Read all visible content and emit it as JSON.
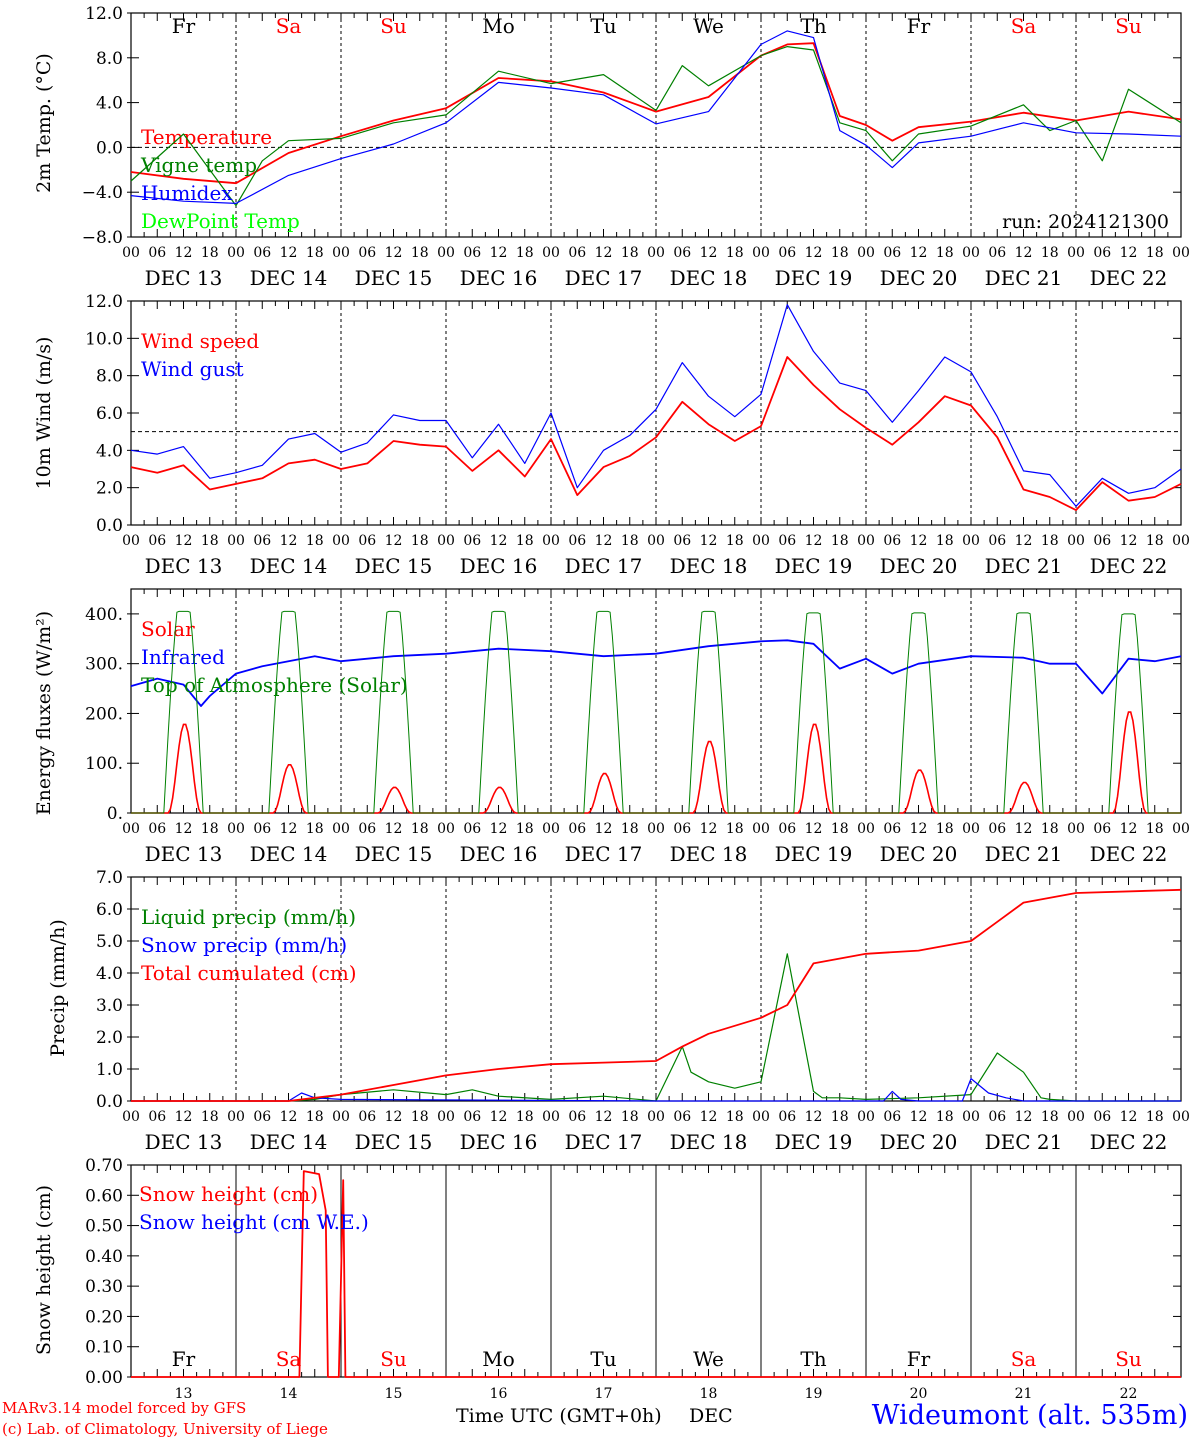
{
  "page": {
    "footer_model": "MARv3.14 model forced by GFS",
    "footer_lab": "(c) Lab. of Climatology, University of Liege",
    "footer_xlabel": "Time UTC (GMT+0h)",
    "footer_month": "DEC",
    "station": "Wideumont (alt. 535m)",
    "run": "run: 2024121300"
  },
  "colors": {
    "red": "#ff0000",
    "green": "#008000",
    "blue": "#0000ff",
    "lime": "#00ff00"
  },
  "days": {
    "weekdays": [
      "Fr",
      "Sa",
      "Su",
      "Mo",
      "Tu",
      "We",
      "Th",
      "Fr",
      "Sa",
      "Su"
    ],
    "weekend": [
      false,
      true,
      true,
      false,
      false,
      false,
      false,
      false,
      true,
      true
    ],
    "date_labels": [
      "DEC 13",
      "DEC 14",
      "DEC 15",
      "DEC 16",
      "DEC 17",
      "DEC 18",
      "DEC 19",
      "DEC 20",
      "DEC 21",
      "DEC 22"
    ],
    "day_numbers": [
      "13",
      "14",
      "15",
      "16",
      "17",
      "18",
      "19",
      "20",
      "21",
      "22"
    ],
    "hour_labels": [
      "00",
      "06",
      "12",
      "18"
    ],
    "final_hour": "00"
  },
  "chart_data": [
    {
      "type": "line",
      "ylabel": "2m Temp. (°C)",
      "ylim": [
        -8,
        12
      ],
      "yticks": [
        "12.0",
        "8.0",
        "4.0",
        "0.0",
        "−4.0",
        "−8.0"
      ],
      "ytick_values": [
        12,
        8,
        4,
        0,
        -4,
        -8
      ],
      "reference_line": 0,
      "x_unit": "hours since DEC 13 00 UTC",
      "series": [
        {
          "name": "Temperature",
          "color": "#ff0000",
          "x": [
            0,
            12,
            24,
            36,
            48,
            60,
            72,
            84,
            96,
            108,
            120,
            132,
            144,
            150,
            156,
            162,
            168,
            174,
            180,
            192,
            204,
            216,
            228,
            240
          ],
          "y": [
            -2.2,
            -2.8,
            -3.2,
            -0.5,
            1.0,
            2.4,
            3.5,
            6.2,
            5.9,
            4.9,
            3.2,
            4.5,
            8.2,
            9.2,
            9.3,
            2.8,
            2.0,
            0.6,
            1.8,
            2.3,
            3.1,
            2.4,
            3.2,
            2.5
          ]
        },
        {
          "name": "Vigne temp",
          "color": "#008000",
          "x": [
            0,
            12,
            24,
            30,
            36,
            48,
            60,
            72,
            84,
            96,
            108,
            120,
            126,
            132,
            144,
            150,
            156,
            162,
            168,
            174,
            180,
            192,
            204,
            210,
            216,
            222,
            228,
            240
          ],
          "y": [
            -3.0,
            1.2,
            -5.2,
            -1.2,
            0.6,
            0.8,
            2.2,
            2.9,
            6.8,
            5.7,
            6.5,
            3.3,
            7.3,
            5.5,
            8.2,
            9.0,
            8.7,
            2.2,
            1.5,
            -1.2,
            1.2,
            1.9,
            3.8,
            1.5,
            2.4,
            -1.2,
            5.2,
            2.2
          ]
        },
        {
          "name": "Humidex",
          "color": "#0000ff",
          "x": [
            0,
            12,
            24,
            36,
            48,
            60,
            72,
            84,
            96,
            108,
            120,
            132,
            144,
            150,
            156,
            162,
            168,
            174,
            180,
            192,
            204,
            216,
            228,
            240
          ],
          "y": [
            -4.3,
            -4.8,
            -5.0,
            -2.5,
            -1.0,
            0.3,
            2.2,
            5.8,
            5.3,
            4.7,
            2.1,
            3.2,
            9.2,
            10.4,
            9.8,
            1.5,
            0.2,
            -1.8,
            0.4,
            1.0,
            2.2,
            1.3,
            1.2,
            1.0
          ]
        },
        {
          "name": "DewPoint Temp",
          "color": "#00ff00",
          "x": [],
          "y": []
        }
      ]
    },
    {
      "type": "line",
      "ylabel": "10m Wind (m/s)",
      "ylim": [
        0,
        12
      ],
      "yticks": [
        "12.0",
        "10.0",
        "8.0",
        "6.0",
        "4.0",
        "2.0",
        "0.0"
      ],
      "ytick_values": [
        12,
        10,
        8,
        6,
        4,
        2,
        0
      ],
      "reference_line": 5,
      "x_unit": "hours since DEC 13 00 UTC",
      "series": [
        {
          "name": "Wind speed",
          "color": "#ff0000",
          "x": [
            0,
            6,
            12,
            18,
            24,
            30,
            36,
            42,
            48,
            54,
            60,
            66,
            72,
            78,
            84,
            90,
            96,
            102,
            108,
            114,
            120,
            126,
            132,
            138,
            144,
            150,
            156,
            162,
            168,
            174,
            180,
            186,
            192,
            198,
            204,
            210,
            216,
            222,
            228,
            234,
            240
          ],
          "y": [
            3.1,
            2.8,
            3.2,
            1.9,
            2.2,
            2.5,
            3.3,
            3.5,
            3.0,
            3.3,
            4.5,
            4.3,
            4.2,
            2.9,
            4.0,
            2.6,
            4.6,
            1.6,
            3.1,
            3.7,
            4.7,
            6.6,
            5.4,
            4.5,
            5.3,
            9.0,
            7.5,
            6.2,
            5.2,
            4.3,
            5.5,
            6.9,
            6.4,
            4.7,
            1.9,
            1.5,
            0.8,
            2.3,
            1.3,
            1.5,
            2.2
          ]
        },
        {
          "name": "Wind gust",
          "color": "#0000ff",
          "x": [
            0,
            6,
            12,
            18,
            24,
            30,
            36,
            42,
            48,
            54,
            60,
            66,
            72,
            78,
            84,
            90,
            96,
            102,
            108,
            114,
            120,
            126,
            132,
            138,
            144,
            150,
            156,
            162,
            168,
            174,
            180,
            186,
            192,
            198,
            204,
            210,
            216,
            222,
            228,
            234,
            240
          ],
          "y": [
            4.0,
            3.8,
            4.2,
            2.5,
            2.8,
            3.2,
            4.6,
            4.9,
            3.9,
            4.4,
            5.9,
            5.6,
            5.6,
            3.6,
            5.4,
            3.3,
            6.0,
            2.0,
            4.0,
            4.8,
            6.2,
            8.7,
            6.9,
            5.8,
            7.0,
            11.8,
            9.3,
            7.6,
            7.2,
            5.5,
            7.2,
            9.0,
            8.2,
            5.8,
            2.9,
            2.7,
            1.0,
            2.5,
            1.7,
            2.0,
            3.0
          ]
        }
      ]
    },
    {
      "type": "line",
      "ylabel": "Energy fluxes (W/m²)",
      "ylim": [
        0,
        450
      ],
      "yticks": [
        "400.",
        "300.",
        "200.",
        "100.",
        "0."
      ],
      "ytick_values": [
        400,
        300,
        200,
        100,
        0
      ],
      "x_unit": "hours since DEC 13 00 UTC",
      "series": [
        {
          "name": "Solar",
          "color": "#ff0000",
          "daily_peak": [
            180,
            98,
            52,
            52,
            80,
            145,
            180,
            87,
            62,
            205
          ]
        },
        {
          "name": "Infrared",
          "color": "#0000ff",
          "x": [
            0,
            6,
            12,
            16,
            18,
            24,
            30,
            36,
            42,
            48,
            60,
            72,
            84,
            96,
            108,
            120,
            132,
            144,
            150,
            156,
            162,
            168,
            174,
            180,
            192,
            204,
            210,
            216,
            222,
            228,
            234,
            240
          ],
          "y": [
            255,
            270,
            258,
            215,
            235,
            280,
            295,
            305,
            315,
            305,
            315,
            320,
            330,
            325,
            315,
            320,
            335,
            345,
            347,
            340,
            290,
            310,
            280,
            300,
            315,
            312,
            300,
            300,
            240,
            310,
            305,
            315
          ]
        },
        {
          "name": "Top of Atmosphere (Solar)",
          "color": "#008000",
          "daily_peak": [
            405,
            405,
            405,
            405,
            405,
            405,
            402,
            402,
            402,
            400
          ]
        }
      ]
    },
    {
      "type": "line",
      "ylabel": "Precip (mm/h)",
      "ylim": [
        0,
        7
      ],
      "yticks": [
        "7.0",
        "6.0",
        "5.0",
        "4.0",
        "3.0",
        "2.0",
        "1.0",
        "0.0"
      ],
      "ytick_values": [
        7,
        6,
        5,
        4,
        3,
        2,
        1,
        0
      ],
      "x_unit": "hours since DEC 13 00 UTC",
      "series": [
        {
          "name": "Liquid precip (mm/h)",
          "color": "#008000",
          "x": [
            0,
            36,
            42,
            48,
            60,
            72,
            78,
            84,
            96,
            108,
            120,
            126,
            128,
            132,
            138,
            144,
            150,
            156,
            158,
            162,
            168,
            180,
            192,
            198,
            204,
            208,
            210,
            216,
            240
          ],
          "y": [
            0,
            0,
            0.05,
            0.2,
            0.35,
            0.2,
            0.35,
            0.15,
            0.05,
            0.15,
            0,
            1.7,
            0.9,
            0.6,
            0.4,
            0.6,
            4.6,
            0.3,
            0.1,
            0.1,
            0.05,
            0.1,
            0.2,
            1.5,
            0.9,
            0.1,
            0.05,
            0,
            0
          ]
        },
        {
          "name": "Snow precip (mm/h)",
          "color": "#0000ff",
          "x": [
            0,
            36,
            39,
            42,
            48,
            120,
            172,
            174,
            176,
            180,
            190,
            192,
            196,
            200,
            204,
            240
          ],
          "y": [
            0,
            0,
            0.25,
            0.1,
            0.05,
            0,
            0,
            0.3,
            0.05,
            0,
            0,
            0.7,
            0.25,
            0.1,
            0,
            0
          ]
        },
        {
          "name": "Total cumulated (cm)",
          "color": "#ff0000",
          "x": [
            0,
            36,
            48,
            60,
            72,
            84,
            96,
            108,
            120,
            126,
            132,
            144,
            150,
            156,
            168,
            180,
            192,
            198,
            204,
            216,
            240
          ],
          "y": [
            0,
            0,
            0.2,
            0.5,
            0.8,
            1.0,
            1.15,
            1.2,
            1.25,
            1.7,
            2.1,
            2.6,
            3.0,
            4.3,
            4.6,
            4.7,
            5.0,
            5.6,
            6.2,
            6.5,
            6.6
          ]
        }
      ]
    },
    {
      "type": "line",
      "ylabel": "Snow height (cm)",
      "ylim": [
        0,
        0.7
      ],
      "yticks": [
        "0.70",
        "0.60",
        "0.50",
        "0.40",
        "0.30",
        "0.20",
        "0.10",
        "0.00"
      ],
      "ytick_values": [
        0.7,
        0.6,
        0.5,
        0.4,
        0.3,
        0.2,
        0.1,
        0.0
      ],
      "x_unit": "hours since DEC 13 00 UTC",
      "series": [
        {
          "name": "Snow height (cm)",
          "color": "#ff0000",
          "x": [
            0,
            38.5,
            39.5,
            43,
            44.5,
            45,
            47,
            47.5,
            48.5,
            49,
            50,
            240
          ],
          "y": [
            0,
            0,
            0.68,
            0.67,
            0.55,
            0,
            0,
            0,
            0.65,
            0,
            0,
            0
          ]
        },
        {
          "name": "Snow height (cm W.E.)",
          "color": "#0000ff",
          "x": [],
          "y": []
        }
      ]
    }
  ]
}
